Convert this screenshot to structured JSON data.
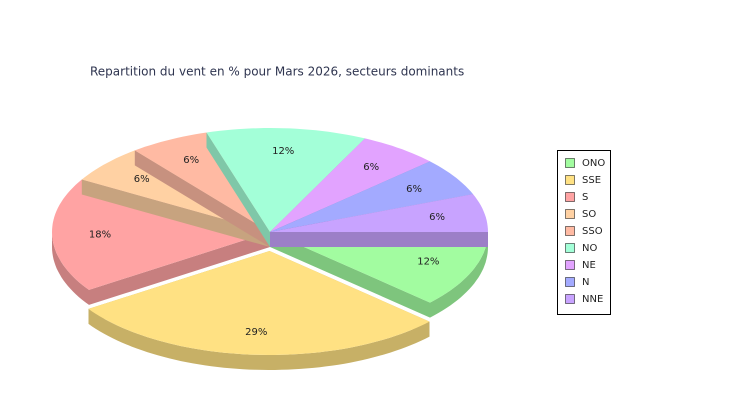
{
  "chart_data": {
    "type": "pie3d",
    "title": "Repartition du vent en % pour Mars 2026, secteurs dominants",
    "categories": [
      "ONO",
      "SSE",
      "S",
      "SO",
      "SSO",
      "NO",
      "NE",
      "N",
      "NNE"
    ],
    "values": [
      12,
      29,
      18,
      6,
      6,
      12,
      6,
      6,
      6
    ],
    "value_labels": [
      "12%",
      "29%",
      "18%",
      "6%",
      "6%",
      "12%",
      "6%",
      "6%",
      "6%"
    ],
    "colors": [
      "#a2fca0",
      "#ffe183",
      "#ffa3a3",
      "#ffd1a3",
      "#ffbaa3",
      "#a3ffd8",
      "#e2a3ff",
      "#a3aaff",
      "#c8a3ff"
    ],
    "exploded": "SSE",
    "legend": "right"
  }
}
